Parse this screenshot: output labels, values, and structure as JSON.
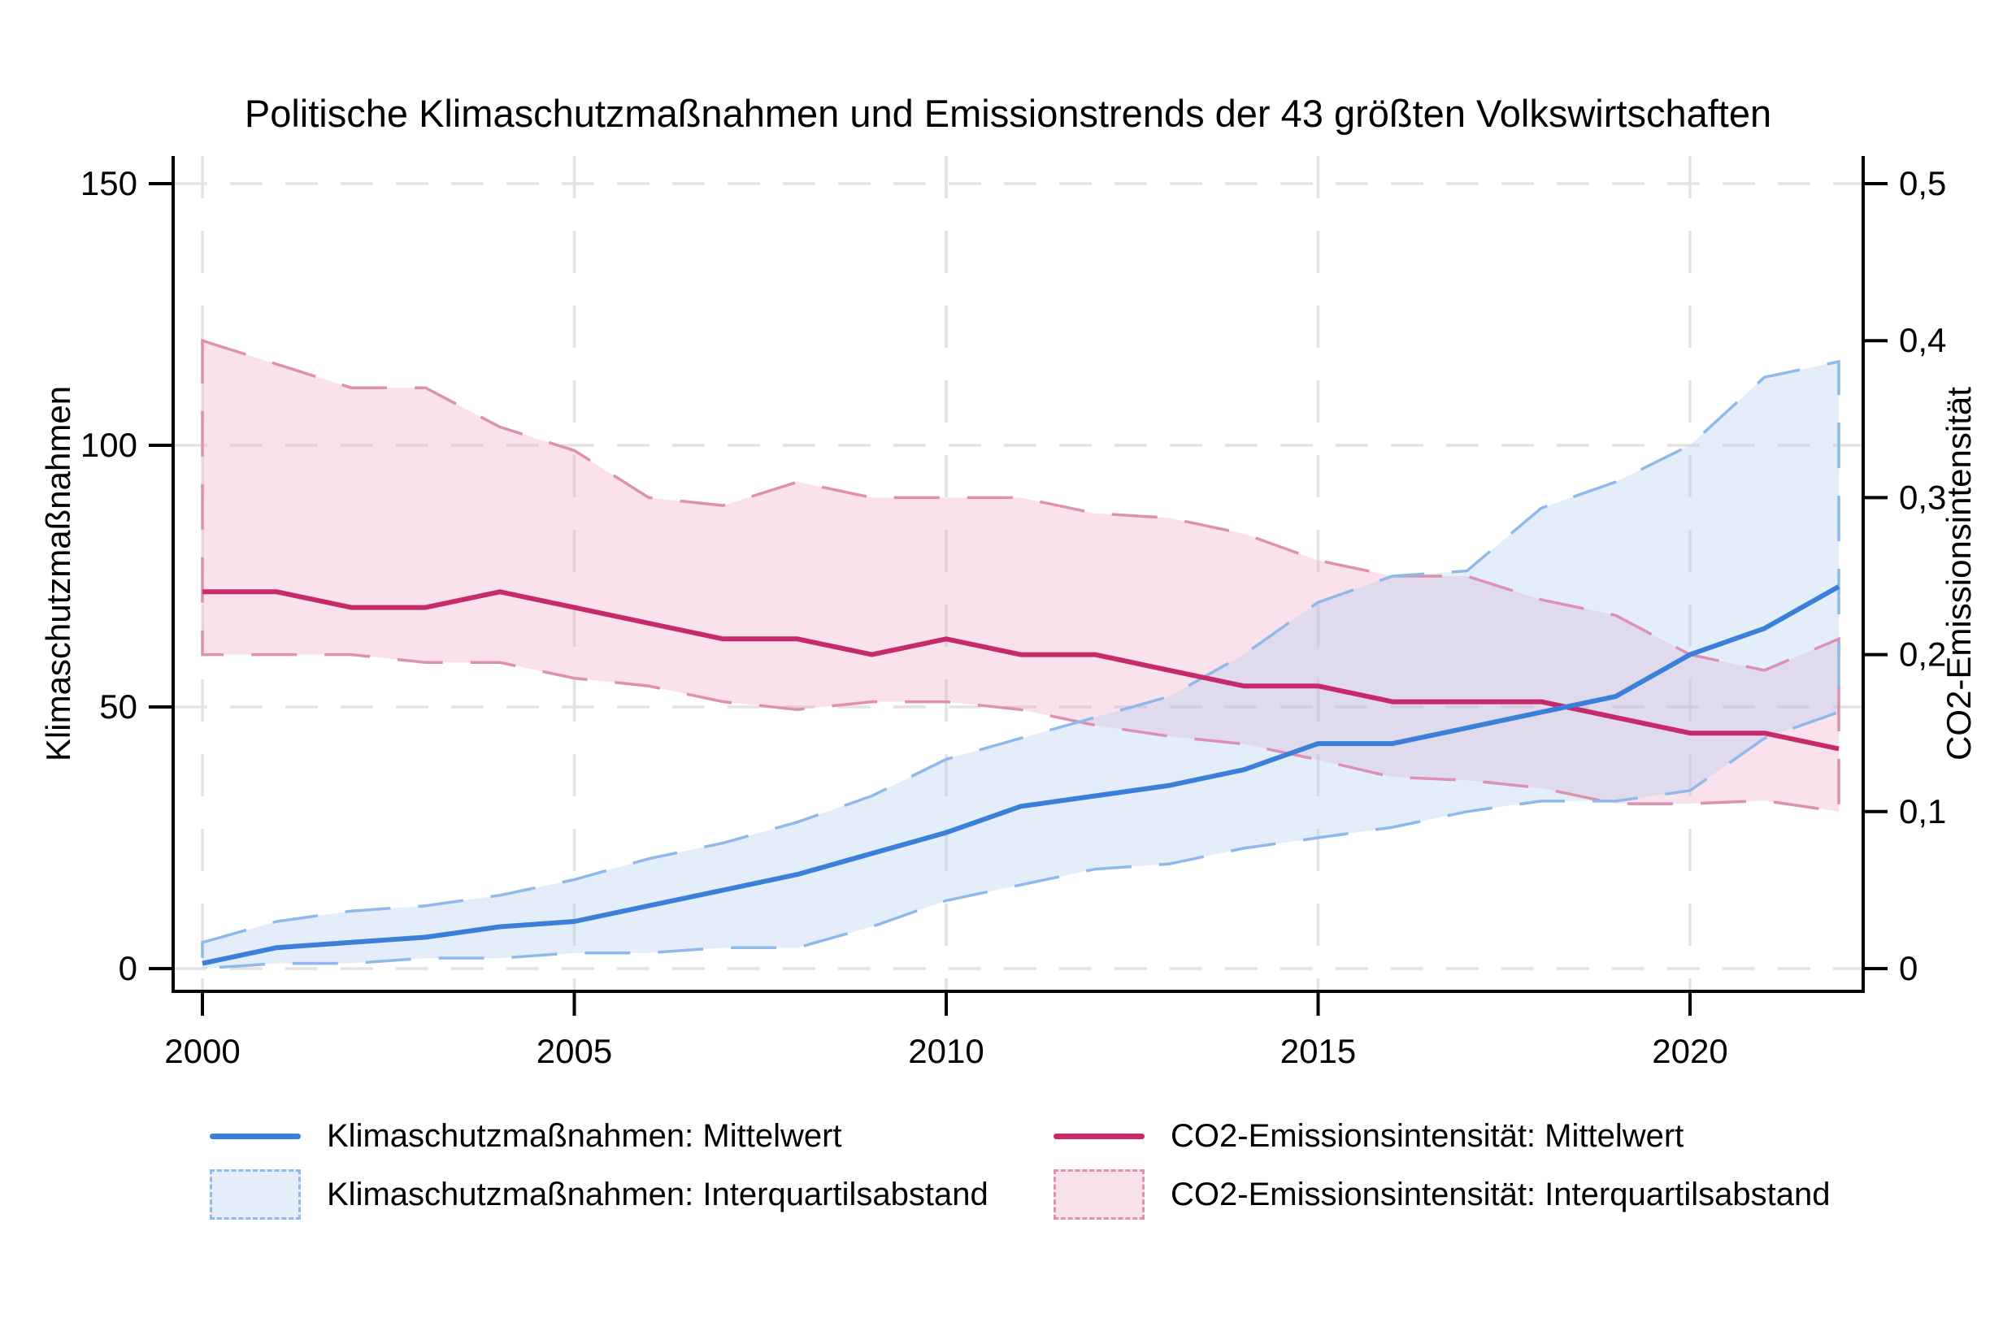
{
  "title": "Politische Klimaschutzmaßnahmen und Emissionstrends der 43 größten Volkswirtschaften",
  "colors": {
    "blue_line": "#3b7fd9",
    "blue_band_fill": "#a9c9ee",
    "blue_band_border": "#8fb9e9",
    "blue_band_bg": "#e4eefa",
    "pink_line": "#c62a68",
    "pink_band_fill": "#eba4c1",
    "pink_band_border": "#dd90af",
    "pink_band_bg": "#f9e2eb",
    "grid": "#e3e3e3",
    "axis": "#000000"
  },
  "legend": {
    "row1_col1": "Klimaschutzmaßnahmen: Mittelwert",
    "row1_col2": "CO2-Emissionsintensität: Mittelwert",
    "row2_col1": "Klimaschutzmaßnahmen: Interquartilsabstand",
    "row2_col2": "CO2-Emissionsintensität: Interquartilsabstand"
  },
  "chart_data": {
    "type": "line",
    "title": "Politische Klimaschutzmaßnahmen und Emissionstrends der 43 größten Volkswirtschaften",
    "x": [
      2000,
      2001,
      2002,
      2003,
      2004,
      2005,
      2006,
      2007,
      2008,
      2009,
      2010,
      2011,
      2012,
      2013,
      2014,
      2015,
      2016,
      2017,
      2018,
      2019,
      2020,
      2021,
      2022
    ],
    "left_axis": {
      "label": "Klimaschutzmaßnahmen",
      "lim": [
        0,
        150
      ],
      "ticks": [
        0,
        50,
        100,
        150
      ],
      "tick_labels": [
        "0",
        "50",
        "100",
        "150"
      ]
    },
    "right_axis": {
      "label": "CO2-Emissionsintensität",
      "lim": [
        0,
        0.5
      ],
      "ticks": [
        0,
        0.1,
        0.2,
        0.3,
        0.4,
        0.5
      ],
      "tick_labels": [
        "0",
        "0,1",
        "0,2",
        "0,3",
        "0,4",
        "0,5"
      ]
    },
    "x_axis": {
      "ticks": [
        2000,
        2005,
        2010,
        2015,
        2020
      ],
      "tick_labels": [
        "2000",
        "2005",
        "2010",
        "2015",
        "2020"
      ]
    },
    "grid": {
      "horizontal_at_left_values": [
        0,
        50,
        100,
        150
      ],
      "vertical_at_years": [
        2000,
        2005,
        2010,
        2015,
        2020
      ]
    },
    "legend_position": "bottom",
    "series": [
      {
        "name": "Klimaschutzmaßnahmen: Mittelwert",
        "axis": "left",
        "type": "line",
        "values": [
          1,
          4,
          5,
          6,
          8,
          9,
          12,
          15,
          18,
          22,
          26,
          31,
          33,
          35,
          38,
          43,
          43,
          46,
          49,
          52,
          60,
          65,
          73
        ]
      },
      {
        "name": "Klimaschutzmaßnahmen: Interquartilsabstand",
        "axis": "left",
        "type": "band",
        "lower": [
          0,
          1,
          1,
          2,
          2,
          3,
          3,
          4,
          4,
          8,
          13,
          16,
          19,
          20,
          23,
          25,
          27,
          30,
          32,
          32,
          34,
          44,
          49
        ],
        "upper": [
          5,
          9,
          11,
          12,
          14,
          17,
          21,
          24,
          28,
          33,
          40,
          44,
          48,
          52,
          60,
          70,
          75,
          76,
          88,
          93,
          100,
          113,
          116
        ]
      },
      {
        "name": "CO2-Emissionsintensität: Mittelwert",
        "axis": "right",
        "type": "line",
        "values": [
          0.24,
          0.24,
          0.23,
          0.23,
          0.24,
          0.23,
          0.22,
          0.21,
          0.21,
          0.2,
          0.21,
          0.2,
          0.2,
          0.19,
          0.18,
          0.18,
          0.17,
          0.17,
          0.17,
          0.16,
          0.15,
          0.15,
          0.14
        ]
      },
      {
        "name": "CO2-Emissionsintensität: Interquartilsabstand",
        "axis": "right",
        "type": "band",
        "lower": [
          0.2,
          0.2,
          0.2,
          0.195,
          0.195,
          0.185,
          0.18,
          0.17,
          0.165,
          0.17,
          0.17,
          0.165,
          0.155,
          0.148,
          0.143,
          0.133,
          0.122,
          0.12,
          0.115,
          0.105,
          0.105,
          0.107,
          0.1
        ],
        "upper": [
          0.4,
          0.385,
          0.37,
          0.37,
          0.345,
          0.33,
          0.3,
          0.295,
          0.31,
          0.3,
          0.3,
          0.3,
          0.29,
          0.287,
          0.277,
          0.26,
          0.25,
          0.25,
          0.235,
          0.225,
          0.2,
          0.19,
          0.21
        ]
      }
    ]
  }
}
